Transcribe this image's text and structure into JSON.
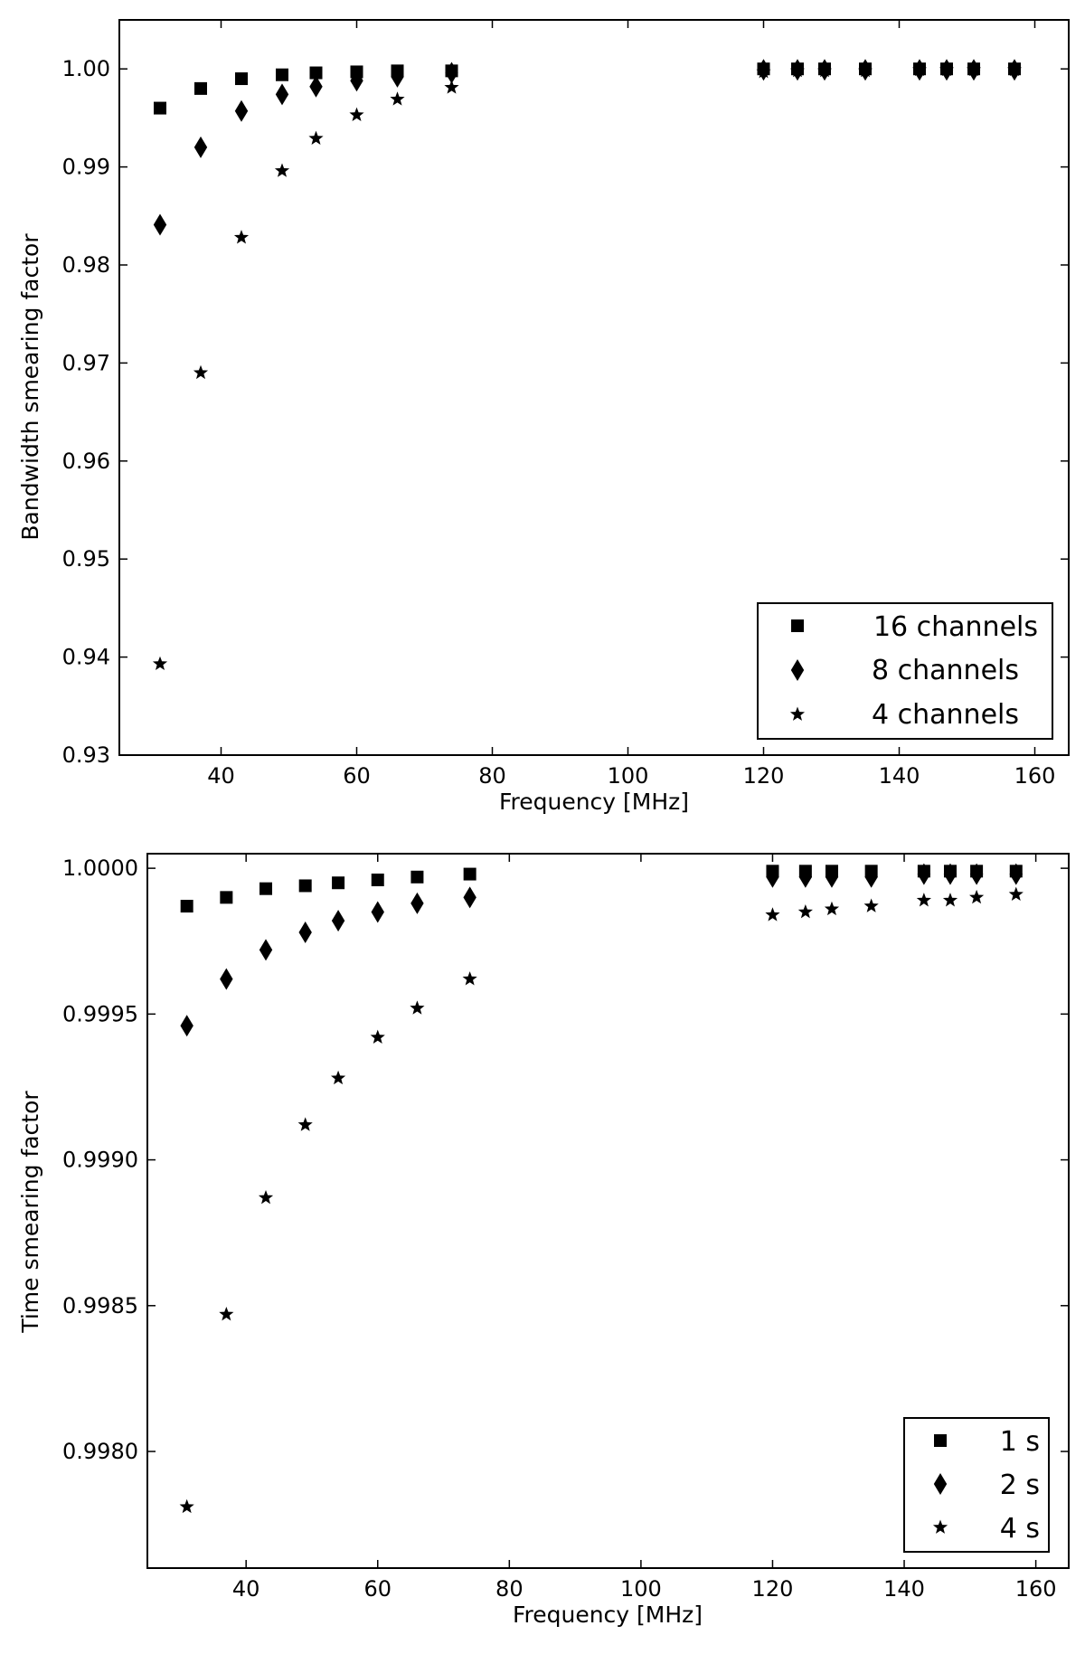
{
  "chart_data": [
    {
      "type": "scatter",
      "title": "",
      "xlabel": "Frequency [MHz]",
      "ylabel": "Bandwidth smearing factor",
      "xlim": [
        25,
        165
      ],
      "ylim": [
        0.93,
        1.005
      ],
      "xticks": [
        40,
        60,
        80,
        100,
        120,
        140,
        160
      ],
      "xtick_labels": [
        "40",
        "60",
        "80",
        "100",
        "120",
        "140",
        "160"
      ],
      "yticks": [
        0.93,
        0.94,
        0.95,
        0.96,
        0.97,
        0.98,
        0.99,
        1.0
      ],
      "ytick_labels": [
        "0.93",
        "0.94",
        "0.95",
        "0.96",
        "0.97",
        "0.98",
        "0.99",
        "1.00"
      ],
      "grid": false,
      "legend_position": "lower-right",
      "series": [
        {
          "name": "16 channels",
          "marker": "square",
          "x": [
            31,
            37,
            43,
            49,
            54,
            60,
            66,
            74,
            120,
            125,
            129,
            135,
            143,
            147,
            151,
            157
          ],
          "y": [
            0.996,
            0.998,
            0.999,
            0.9994,
            0.9996,
            0.9997,
            0.9998,
            0.9998,
            1.0,
            1.0,
            1.0,
            1.0,
            1.0,
            1.0,
            1.0,
            1.0
          ]
        },
        {
          "name": "8 channels",
          "marker": "diamond",
          "x": [
            31,
            37,
            43,
            49,
            54,
            60,
            66,
            74,
            120,
            125,
            129,
            135,
            143,
            147,
            151,
            157
          ],
          "y": [
            0.9841,
            0.992,
            0.9957,
            0.9974,
            0.9982,
            0.9988,
            0.9992,
            0.9996,
            0.9999,
            0.9999,
            0.9999,
            0.9999,
            0.9999,
            0.9999,
            0.9999,
            0.9999
          ]
        },
        {
          "name": "4 channels",
          "marker": "star",
          "x": [
            31,
            37,
            43,
            49,
            54,
            60,
            66,
            74,
            120,
            125,
            129,
            135,
            143,
            147,
            151,
            157
          ],
          "y": [
            0.9393,
            0.969,
            0.9828,
            0.9896,
            0.9929,
            0.9953,
            0.9969,
            0.9981,
            0.9997,
            0.9998,
            0.9998,
            0.9998,
            0.9999,
            0.9999,
            0.9999,
            0.9999
          ]
        }
      ]
    },
    {
      "type": "scatter",
      "title": "",
      "xlabel": "Frequency [MHz]",
      "ylabel": "Time smearing factor",
      "xlim": [
        25,
        165
      ],
      "ylim": [
        0.9976,
        1.00005
      ],
      "xticks": [
        40,
        60,
        80,
        100,
        120,
        140,
        160
      ],
      "xtick_labels": [
        "40",
        "60",
        "80",
        "100",
        "120",
        "140",
        "160"
      ],
      "yticks": [
        0.998,
        0.9985,
        0.999,
        0.9995,
        1.0
      ],
      "ytick_labels": [
        "0.9980",
        "0.9985",
        "0.9990",
        "0.9995",
        "1.0000"
      ],
      "grid": false,
      "legend_position": "lower-right",
      "series": [
        {
          "name": "1 s",
          "marker": "square",
          "x": [
            31,
            37,
            43,
            49,
            54,
            60,
            66,
            74,
            120,
            125,
            129,
            135,
            143,
            147,
            151,
            157
          ],
          "y": [
            0.99987,
            0.9999,
            0.99993,
            0.99994,
            0.99995,
            0.99996,
            0.99997,
            0.99998,
            0.99999,
            0.99999,
            0.99999,
            0.99999,
            0.99999,
            0.99999,
            0.99999,
            0.99999
          ]
        },
        {
          "name": "2 s",
          "marker": "diamond",
          "x": [
            31,
            37,
            43,
            49,
            54,
            60,
            66,
            74,
            120,
            125,
            129,
            135,
            143,
            147,
            151,
            157
          ],
          "y": [
            0.99946,
            0.99962,
            0.99972,
            0.99978,
            0.99982,
            0.99985,
            0.99988,
            0.9999,
            0.99997,
            0.99997,
            0.99997,
            0.99997,
            0.99998,
            0.99998,
            0.99998,
            0.99998
          ]
        },
        {
          "name": "4 s",
          "marker": "star",
          "x": [
            31,
            37,
            43,
            49,
            54,
            60,
            66,
            74,
            120,
            125,
            129,
            135,
            143,
            147,
            151,
            157
          ],
          "y": [
            0.99781,
            0.99847,
            0.99887,
            0.99912,
            0.99928,
            0.99942,
            0.99952,
            0.99962,
            0.99984,
            0.99985,
            0.99986,
            0.99987,
            0.99989,
            0.99989,
            0.9999,
            0.99991
          ]
        }
      ]
    }
  ]
}
